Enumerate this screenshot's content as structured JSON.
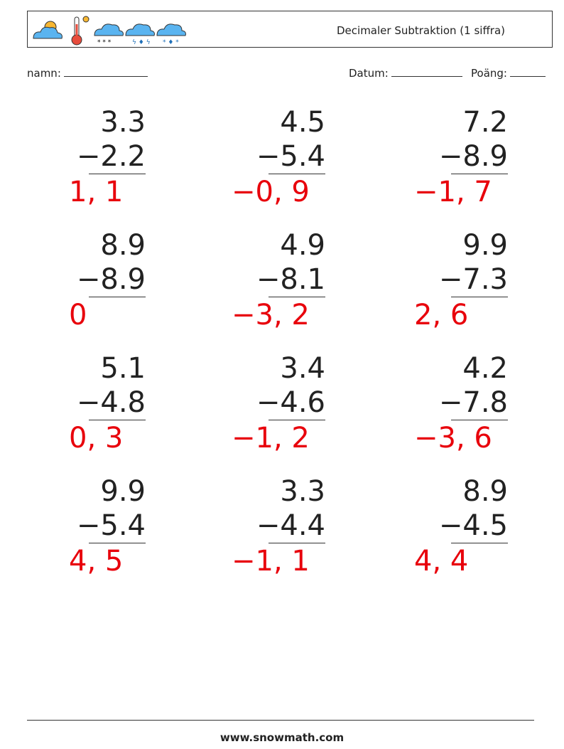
{
  "header": {
    "title": "Decimaler Subtraktion (1 siffra)"
  },
  "fields": {
    "name": "namn:",
    "date": "Datum:",
    "score": "Poäng:"
  },
  "problems": [
    {
      "top": "3.3",
      "bottom": "−2.2",
      "answer": "1, 1"
    },
    {
      "top": "4.5",
      "bottom": "−5.4",
      "answer": "−0, 9"
    },
    {
      "top": "7.2",
      "bottom": "−8.9",
      "answer": "−1, 7"
    },
    {
      "top": "8.9",
      "bottom": "−8.9",
      "answer": "0"
    },
    {
      "top": "4.9",
      "bottom": "−8.1",
      "answer": "−3, 2"
    },
    {
      "top": "9.9",
      "bottom": "−7.3",
      "answer": "2, 6"
    },
    {
      "top": "5.1",
      "bottom": "−4.8",
      "answer": "0, 3"
    },
    {
      "top": "3.4",
      "bottom": "−4.6",
      "answer": "−1, 2"
    },
    {
      "top": "4.2",
      "bottom": "−7.8",
      "answer": "−3, 6"
    },
    {
      "top": "9.9",
      "bottom": "−5.4",
      "answer": "4, 5"
    },
    {
      "top": "3.3",
      "bottom": "−4.4",
      "answer": "−1, 1"
    },
    {
      "top": "8.9",
      "bottom": "−4.5",
      "answer": "4, 4"
    }
  ],
  "footer": {
    "url": "www.snowmath.com"
  }
}
